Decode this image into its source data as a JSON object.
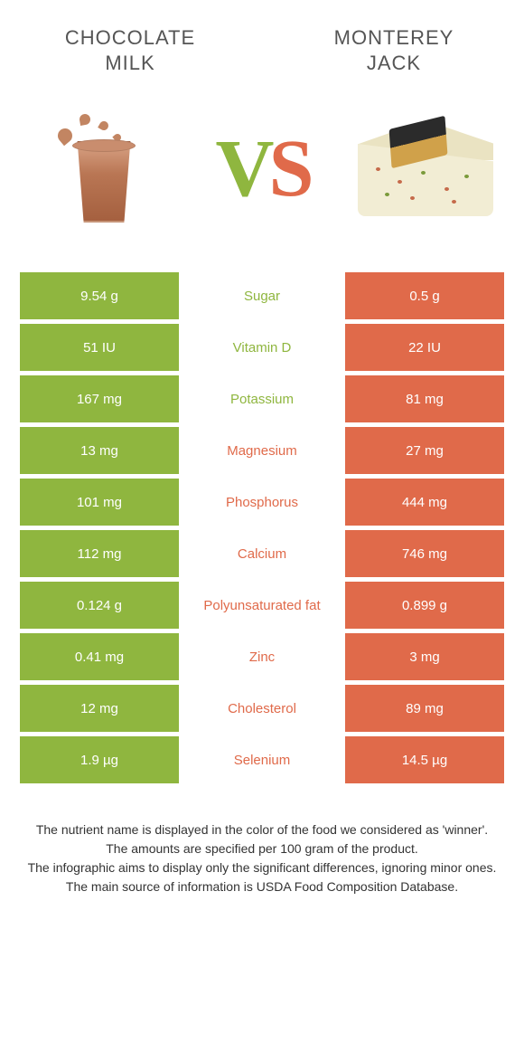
{
  "left_food": {
    "title": "CHOCOLATE\nMILK",
    "color": "#8fb63f"
  },
  "right_food": {
    "title": "MONTEREY\nJACK",
    "color": "#e06a4a"
  },
  "vs": {
    "v": "V",
    "s": "S"
  },
  "colors": {
    "left_bg": "#8fb63f",
    "right_bg": "#e06a4a",
    "left_text": "#8fb63f",
    "right_text": "#e06a4a"
  },
  "rows": [
    {
      "left": "9.54 g",
      "label": "Sugar",
      "right": "0.5 g",
      "winner": "left"
    },
    {
      "left": "51 IU",
      "label": "Vitamin D",
      "right": "22 IU",
      "winner": "left"
    },
    {
      "left": "167 mg",
      "label": "Potassium",
      "right": "81 mg",
      "winner": "left"
    },
    {
      "left": "13 mg",
      "label": "Magnesium",
      "right": "27 mg",
      "winner": "right"
    },
    {
      "left": "101 mg",
      "label": "Phosphorus",
      "right": "444 mg",
      "winner": "right"
    },
    {
      "left": "112 mg",
      "label": "Calcium",
      "right": "746 mg",
      "winner": "right"
    },
    {
      "left": "0.124 g",
      "label": "Polyunsaturated fat",
      "right": "0.899 g",
      "winner": "right"
    },
    {
      "left": "0.41 mg",
      "label": "Zinc",
      "right": "3 mg",
      "winner": "right"
    },
    {
      "left": "12 mg",
      "label": "Cholesterol",
      "right": "89 mg",
      "winner": "right"
    },
    {
      "left": "1.9 µg",
      "label": "Selenium",
      "right": "14.5 µg",
      "winner": "right"
    }
  ],
  "footer": [
    "The nutrient name is displayed in the color of the food we considered as 'winner'.",
    "The amounts are specified per 100 gram of the product.",
    "The infographic aims to display only the significant differences, ignoring minor ones.",
    "The main source of information is USDA Food Composition Database."
  ]
}
